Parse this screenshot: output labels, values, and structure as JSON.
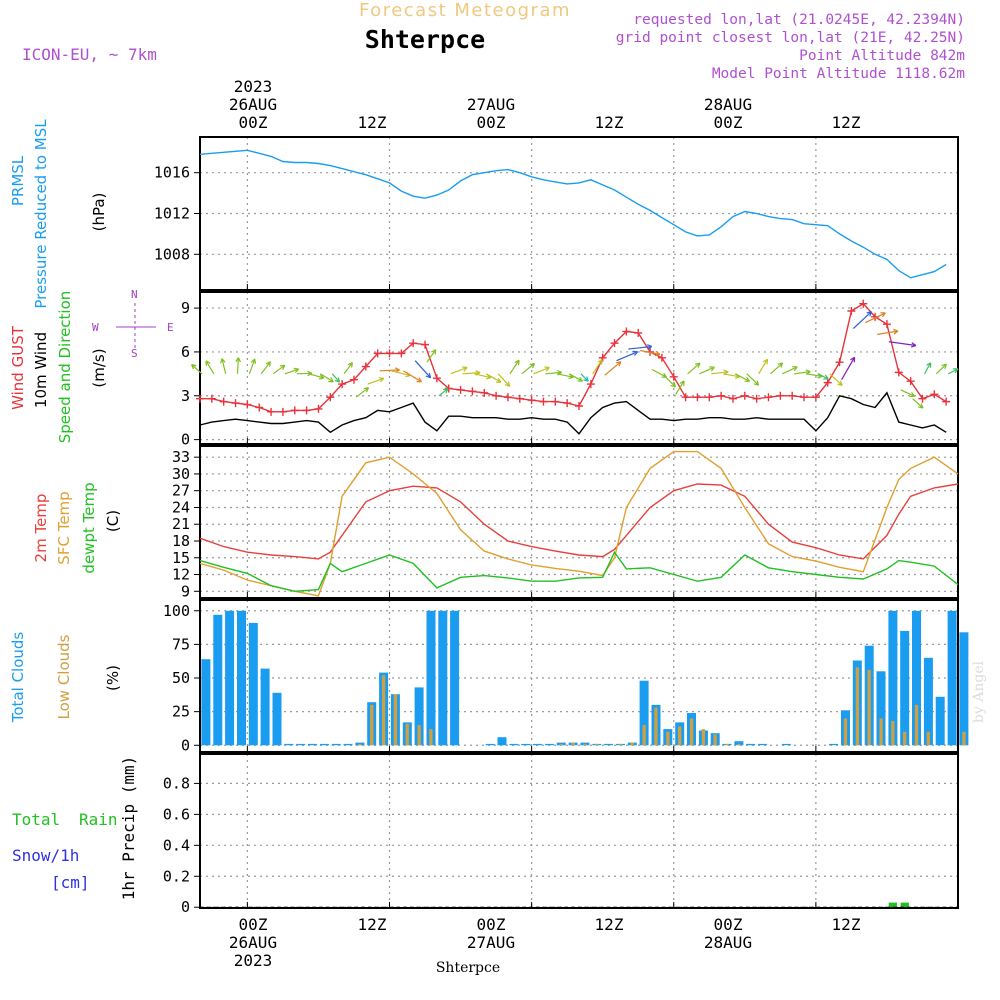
{
  "header": {
    "product_title": "Forecast Meteogram",
    "location": "Shterpce",
    "model": "ICON-EU,  ~ 7km",
    "requested_point": "requested lon,lat (21.0245E, 42.2394N)",
    "grid_point": "grid point closest lon,lat (21E, 42.25N)",
    "point_altitude": "Point Altitude 842m",
    "model_point_altitude": "Model Point Altitude 1118.62m"
  },
  "time_axis": {
    "year": "2023",
    "day_labels": [
      "26AUG",
      "27AUG",
      "28AUG"
    ],
    "hour_labels": [
      "00Z",
      "12Z",
      "00Z",
      "12Z",
      "00Z",
      "12Z"
    ],
    "start_hour": -4,
    "end_hour": 60
  },
  "footer": {
    "location": "Shterpce",
    "credit": "by Angel"
  },
  "colors": {
    "pressure": "#1a9df0",
    "gust": "#e8323c",
    "wind": "#000000",
    "temp": "#e8403c",
    "sfc": "#e0a030",
    "dewpt": "#22c022",
    "total_cloud": "#1a9df0",
    "low_cloud": "#d0a040",
    "rain": "#22c022",
    "snow": "#3030e0",
    "compass": "#a040c0",
    "header_info": "#b050d0",
    "title_faint": "#f0c880"
  },
  "panels": {
    "pressure": {
      "title": "PRMSL",
      "subtitle": "Pressure Reduced to MSL",
      "unit": "(hPa)"
    },
    "wind": {
      "gust_label": "Wind GUST",
      "wind_label": "10m Wind",
      "dir_label": "Speed and Direction",
      "unit": "(m/s)",
      "compass": {
        "n": "N",
        "s": "S",
        "e": "E",
        "w": "W"
      }
    },
    "temp": {
      "t2m_label": "2m Temp",
      "sfc_label": "SFC Temp",
      "dew_label": "dewpt Temp",
      "unit": "(C)"
    },
    "cloud": {
      "total_label": "Total Clouds",
      "low_label": "Low Clouds",
      "unit": "(%)"
    },
    "precip": {
      "total_label": "Total",
      "rain_label": "Rain",
      "snow_label": "Snow/1h",
      "snow_unit": "[cm]",
      "ylabel": "1hr Precip (mm)"
    }
  },
  "chart_data": [
    {
      "type": "line",
      "name": "pressure",
      "title": "PRMSL Pressure Reduced to MSL",
      "ylabel": "(hPa)",
      "ylim": [
        1004.5,
        1019.5
      ],
      "yticks": [
        1008,
        1012,
        1016
      ],
      "grid": true,
      "series": [
        {
          "name": "PRMSL",
          "x": [
            -4,
            -3,
            -2,
            -1,
            0,
            1,
            2,
            3,
            4,
            5,
            6,
            7,
            8,
            9,
            10,
            11,
            12,
            13,
            14,
            15,
            16,
            17,
            18,
            19,
            20,
            21,
            22,
            23,
            24,
            25,
            26,
            27,
            28,
            29,
            30,
            31,
            32,
            33,
            34,
            35,
            36,
            37,
            38,
            39,
            40,
            41,
            42,
            43,
            44,
            45,
            46,
            47,
            48,
            49,
            50,
            51,
            52,
            53,
            54,
            55,
            56,
            57,
            58,
            59
          ],
          "values": [
            1017.8,
            1017.9,
            1018.0,
            1018.1,
            1018.2,
            1017.9,
            1017.6,
            1017.1,
            1017.0,
            1017.0,
            1016.9,
            1016.7,
            1016.4,
            1016.1,
            1015.8,
            1015.4,
            1015.0,
            1014.2,
            1013.7,
            1013.5,
            1013.8,
            1014.3,
            1015.2,
            1015.8,
            1016.0,
            1016.2,
            1016.3,
            1016.0,
            1015.6,
            1015.3,
            1015.1,
            1014.9,
            1015.0,
            1015.3,
            1014.8,
            1014.3,
            1013.6,
            1012.9,
            1012.3,
            1011.6,
            1010.9,
            1010.2,
            1009.8,
            1009.9,
            1010.7,
            1011.7,
            1012.2,
            1012.0,
            1011.7,
            1011.5,
            1011.4,
            1011.0,
            1010.9,
            1010.8,
            1010.0,
            1009.3,
            1008.7,
            1008.0,
            1007.5,
            1006.4,
            1005.7,
            1006.0,
            1006.3,
            1007.0
          ]
        }
      ]
    },
    {
      "type": "line",
      "name": "wind",
      "title": "Wind GUST / 10m Wind Speed and Direction",
      "ylabel": "(m/s)",
      "ylim": [
        -0.3,
        10.1
      ],
      "yticks": [
        0,
        3,
        6,
        9
      ],
      "grid": true,
      "series": [
        {
          "name": "Wind GUST",
          "x": [
            -4,
            -3,
            -2,
            -1,
            0,
            1,
            2,
            3,
            4,
            5,
            6,
            7,
            8,
            9,
            10,
            11,
            12,
            13,
            14,
            15,
            16,
            17,
            18,
            19,
            20,
            21,
            22,
            23,
            24,
            25,
            26,
            27,
            28,
            29,
            30,
            31,
            32,
            33,
            34,
            35,
            36,
            37,
            38,
            39,
            40,
            41,
            42,
            43,
            44,
            45,
            46,
            47,
            48,
            49,
            50,
            51,
            52,
            53,
            54,
            55,
            56,
            57,
            58,
            59
          ],
          "values": [
            2.8,
            2.8,
            2.6,
            2.5,
            2.4,
            2.2,
            1.9,
            1.9,
            2.0,
            2.0,
            2.1,
            2.9,
            3.8,
            4.1,
            5.0,
            5.9,
            5.9,
            5.9,
            6.6,
            6.5,
            4.2,
            3.5,
            3.4,
            3.3,
            3.2,
            3.0,
            2.9,
            2.8,
            2.7,
            2.6,
            2.6,
            2.5,
            2.3,
            3.8,
            5.6,
            6.6,
            7.4,
            7.3,
            6.0,
            5.6,
            4.3,
            2.9,
            2.9,
            2.9,
            3.0,
            2.8,
            3.0,
            2.8,
            2.9,
            3.0,
            3.0,
            2.9,
            2.9,
            3.9,
            5.3,
            8.8,
            9.3,
            8.4,
            7.9,
            4.6,
            4.0,
            2.8,
            3.1,
            2.6
          ]
        },
        {
          "name": "10m Wind",
          "x": [
            -4,
            -3,
            -2,
            -1,
            0,
            1,
            2,
            3,
            4,
            5,
            6,
            7,
            8,
            9,
            10,
            11,
            12,
            13,
            14,
            15,
            16,
            17,
            18,
            19,
            20,
            21,
            22,
            23,
            24,
            25,
            26,
            27,
            28,
            29,
            30,
            31,
            32,
            33,
            34,
            35,
            36,
            37,
            38,
            39,
            40,
            41,
            42,
            43,
            44,
            45,
            46,
            47,
            48,
            49,
            50,
            51,
            52,
            53,
            54,
            55,
            56,
            57,
            58,
            59
          ],
          "values": [
            1.0,
            1.2,
            1.3,
            1.4,
            1.3,
            1.2,
            1.1,
            1.1,
            1.2,
            1.3,
            1.2,
            0.5,
            1.0,
            1.3,
            1.5,
            2.0,
            1.9,
            2.2,
            2.5,
            1.2,
            0.6,
            1.6,
            1.6,
            1.5,
            1.5,
            1.5,
            1.4,
            1.4,
            1.5,
            1.4,
            1.4,
            1.2,
            0.4,
            1.5,
            2.2,
            2.5,
            2.6,
            2.0,
            1.4,
            1.4,
            1.3,
            1.4,
            1.4,
            1.5,
            1.5,
            1.4,
            1.4,
            1.5,
            1.4,
            1.4,
            1.4,
            1.4,
            0.6,
            1.5,
            3.0,
            2.8,
            2.4,
            2.2,
            3.2,
            1.2,
            1.0,
            0.8,
            1.0,
            0.5
          ]
        }
      ]
    },
    {
      "type": "line",
      "name": "temperature",
      "title": "2m Temp / SFC Temp / dewpt Temp",
      "ylabel": "(C)",
      "ylim": [
        7.8,
        35
      ],
      "yticks": [
        9,
        12,
        15,
        18,
        21,
        24,
        27,
        30,
        33
      ],
      "grid": true,
      "series": [
        {
          "name": "2m Temp",
          "x": [
            -4,
            -2,
            0,
            2,
            4,
            6,
            7,
            8,
            10,
            12,
            14,
            16,
            18,
            20,
            22,
            24,
            26,
            28,
            30,
            31,
            32,
            34,
            36,
            38,
            40,
            42,
            44,
            46,
            48,
            50,
            52,
            54,
            55,
            56,
            58,
            60
          ],
          "values": [
            18.5,
            17,
            16,
            15.5,
            15.2,
            14.8,
            16,
            19,
            25,
            27,
            27.8,
            27.5,
            25,
            21,
            18,
            17,
            16.2,
            15.5,
            15.2,
            16.5,
            19,
            24,
            27,
            28.2,
            28,
            26,
            21,
            17.8,
            16.8,
            15.5,
            14.8,
            19,
            22.8,
            26,
            27.5,
            28.2
          ]
        },
        {
          "name": "SFC Temp",
          "x": [
            -4,
            -2,
            0,
            2,
            4,
            6,
            7,
            8,
            10,
            12,
            14,
            16,
            18,
            20,
            22,
            24,
            26,
            28,
            30,
            31,
            32,
            34,
            36,
            38,
            40,
            42,
            44,
            46,
            48,
            50,
            52,
            54,
            55,
            56,
            58,
            60
          ],
          "values": [
            14,
            12.8,
            11,
            10,
            9,
            8.2,
            14,
            26,
            32,
            33,
            30,
            26.5,
            20,
            16.2,
            14.8,
            13.7,
            13.1,
            12.6,
            11.8,
            15,
            24,
            31,
            34,
            34,
            31,
            24,
            17.5,
            15.2,
            14.4,
            13.3,
            12.5,
            24,
            29,
            31,
            33,
            30
          ]
        },
        {
          "name": "dewpt Temp",
          "x": [
            -4,
            -2,
            0,
            2,
            4,
            6,
            7,
            8,
            10,
            12,
            14,
            16,
            18,
            20,
            22,
            24,
            26,
            28,
            30,
            31,
            32,
            34,
            36,
            38,
            40,
            42,
            44,
            46,
            48,
            50,
            52,
            54,
            55,
            56,
            58,
            60
          ],
          "values": [
            14.5,
            13.3,
            12.2,
            10,
            9,
            9.3,
            14,
            12.5,
            14,
            15.5,
            14,
            9.6,
            11.5,
            11.8,
            11.4,
            10.8,
            10.8,
            11.4,
            11.5,
            16,
            13,
            13.2,
            12,
            10.8,
            11.5,
            15.5,
            13.2,
            12.5,
            12,
            11.5,
            11.2,
            13,
            14.5,
            14.2,
            13.5,
            10.2
          ]
        }
      ]
    },
    {
      "type": "bar",
      "name": "clouds",
      "title": "Total Clouds / Low Clouds",
      "ylabel": "(%)",
      "ylim": [
        -5,
        108
      ],
      "yticks": [
        0,
        25,
        50,
        75,
        100
      ],
      "grid": true,
      "x": [
        -4,
        -3,
        -2,
        -1,
        0,
        1,
        2,
        3,
        4,
        5,
        6,
        7,
        8,
        9,
        10,
        11,
        12,
        13,
        14,
        15,
        16,
        17,
        18,
        19,
        20,
        21,
        22,
        23,
        24,
        25,
        26,
        27,
        28,
        29,
        30,
        31,
        32,
        33,
        34,
        35,
        36,
        37,
        38,
        39,
        40,
        41,
        42,
        43,
        44,
        45,
        46,
        47,
        48,
        49,
        50,
        51,
        52,
        53,
        54,
        55,
        56,
        57,
        58,
        59,
        60
      ],
      "series": [
        {
          "name": "Total Clouds",
          "values": [
            64,
            97,
            100,
            100,
            91,
            57,
            39,
            1,
            1,
            1,
            1,
            1,
            1,
            2,
            32,
            54,
            38,
            17,
            43,
            100,
            100,
            100,
            0,
            0,
            1,
            6,
            1,
            1,
            1,
            1,
            2,
            2,
            2,
            1,
            1,
            1,
            2,
            48,
            30,
            12,
            17,
            24,
            11,
            9,
            1,
            3,
            1,
            1,
            0,
            1,
            0,
            0,
            0,
            1,
            26,
            63,
            74,
            55,
            100,
            85,
            100,
            65,
            36,
            100,
            84
          ]
        },
        {
          "name": "Low Clouds",
          "values": [
            0,
            0,
            0,
            0,
            0,
            0,
            0,
            0,
            0,
            0,
            0,
            0,
            0,
            1,
            30,
            52,
            38,
            16,
            15,
            12,
            0,
            0,
            0,
            0,
            0,
            0,
            0,
            0,
            0,
            0,
            1,
            2,
            1,
            1,
            0,
            1,
            2,
            15,
            28,
            10,
            14,
            20,
            12,
            8,
            1,
            1,
            0,
            0,
            0,
            0,
            0,
            0,
            0,
            0,
            20,
            58,
            56,
            20,
            18,
            10,
            30,
            10,
            0,
            0,
            10
          ]
        }
      ]
    },
    {
      "type": "bar",
      "name": "precipitation",
      "title": "Total Rain / Snow per 1h",
      "ylabel": "1hr Precip (mm)",
      "ylim": [
        -0.005,
        0.99
      ],
      "yticks": [
        0,
        0.2,
        0.4,
        0.6,
        0.8
      ],
      "grid": true,
      "x": [
        54,
        55
      ],
      "series": [
        {
          "name": "Total Rain",
          "values": [
            0.03,
            0.03
          ]
        }
      ]
    }
  ]
}
